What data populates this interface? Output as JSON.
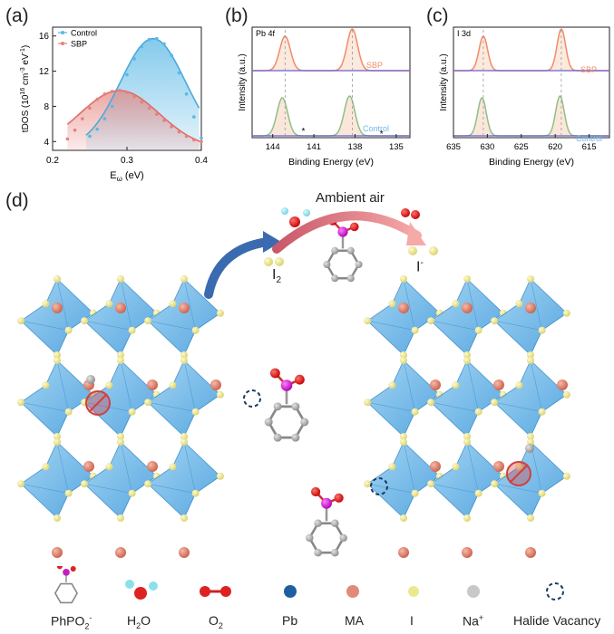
{
  "panels": {
    "a": {
      "label": "(a)"
    },
    "b": {
      "label": "(b)",
      "tag": "Pb 4f"
    },
    "c": {
      "label": "(c)",
      "tag": "I 3d"
    },
    "d": {
      "label": "(d)"
    }
  },
  "chart_data": [
    {
      "type": "scatter",
      "panel": "a",
      "ylabel": "tDOS (10¹⁶ cm⁻³ eV⁻¹)",
      "xlabel": "Eω (eV)",
      "xlim": [
        0.2,
        0.4
      ],
      "ylim": [
        3,
        17
      ],
      "xticks": [
        "0.2",
        "0.3",
        "0.4"
      ],
      "yticks": [
        "4",
        "8",
        "12",
        "16"
      ],
      "legend": [
        "Control",
        "SBP"
      ],
      "series": [
        {
          "name": "Control",
          "color": "#5bb8e6",
          "x": [
            0.25,
            0.26,
            0.27,
            0.28,
            0.29,
            0.3,
            0.31,
            0.32,
            0.33,
            0.34,
            0.35,
            0.36,
            0.37,
            0.38,
            0.39,
            0.4
          ],
          "y": [
            4.6,
            5.4,
            6.6,
            8.0,
            9.8,
            11.6,
            13.4,
            14.8,
            15.6,
            15.7,
            15.1,
            13.8,
            11.8,
            9.4,
            6.8,
            4.4
          ]
        },
        {
          "name": "SBP",
          "color": "#e5817b",
          "x": [
            0.22,
            0.23,
            0.24,
            0.25,
            0.26,
            0.27,
            0.28,
            0.29,
            0.3,
            0.31,
            0.32,
            0.33,
            0.34,
            0.35,
            0.36,
            0.37,
            0.38,
            0.39,
            0.4
          ],
          "y": [
            4.3,
            5.3,
            6.6,
            7.8,
            8.8,
            9.4,
            9.7,
            9.8,
            9.6,
            9.1,
            8.5,
            7.8,
            7.1,
            6.4,
            5.7,
            5.1,
            4.6,
            4.2,
            4.0
          ]
        }
      ]
    },
    {
      "type": "line",
      "panel": "b",
      "ylabel": "Intensity (a.u.)",
      "xlabel": "Binding Energy (eV)",
      "xlim": [
        145.5,
        134
      ],
      "xticks": [
        "144",
        "141",
        "138",
        "135"
      ],
      "series": [
        {
          "name": "SBP",
          "color": "#f08c6a",
          "peaks": [
            143.1,
            138.2
          ]
        },
        {
          "name": "Control",
          "color": "#6fb7e8",
          "peaks": [
            143.3,
            138.4
          ],
          "annotations": [
            "*",
            "*"
          ]
        }
      ]
    },
    {
      "type": "line",
      "panel": "c",
      "ylabel": "Intensity (a.u.)",
      "xlabel": "Binding Energy (eV)",
      "xlim": [
        635,
        612
      ],
      "xticks": [
        "635",
        "630",
        "625",
        "620",
        "615"
      ],
      "series": [
        {
          "name": "SBP",
          "color": "#f08c6a",
          "peaks": [
            630.6,
            619.1
          ]
        },
        {
          "name": "Control",
          "color": "#6fb7e8",
          "peaks": [
            630.8,
            619.3
          ]
        }
      ]
    }
  ],
  "schematic": {
    "ambient_air": "Ambient air",
    "i2": "I",
    "i2_sub": "2",
    "i_minus": "I",
    "i_minus_sup": "-"
  },
  "legend": {
    "items": [
      {
        "label": "PhPO",
        "sub": "2",
        "sup": "-",
        "icon": "phpo2-molecule-icon"
      },
      {
        "label": "H",
        "sub": "2",
        "tail": "O",
        "icon": "water-molecule-icon"
      },
      {
        "label": "O",
        "sub": "2",
        "icon": "oxygen-molecule-icon"
      },
      {
        "label": "Pb",
        "icon": "pb-atom-icon",
        "color": "#1f5fa0"
      },
      {
        "label": "MA",
        "icon": "ma-atom-icon",
        "color": "#e08a78"
      },
      {
        "label": "I",
        "icon": "iodine-atom-icon",
        "color": "#ece890"
      },
      {
        "label": "Na",
        "sup": "+",
        "icon": "sodium-atom-icon",
        "color": "#c8c8c8"
      },
      {
        "label": "Halide Vacancy",
        "icon": "halide-vacancy-icon"
      }
    ]
  }
}
